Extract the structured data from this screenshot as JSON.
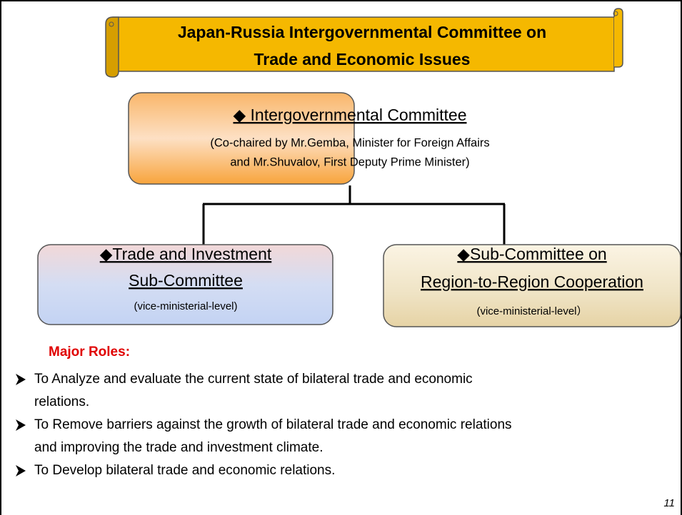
{
  "banner": {
    "title_lines": [
      "Japan-Russia Intergovernmental Committee on",
      "Trade and Economic Issues"
    ]
  },
  "nodes": [
    {
      "heading": [
        "◆ Intergovernmental Committee"
      ],
      "lines": [
        "(Co-chaired by Mr.Gemba, Minister for Foreign Affairs",
        "and Mr.Shuvalov, First Deputy Prime Minister)"
      ]
    },
    {
      "heading": [
        "◆Trade and Investment ",
        "Sub-Committee"
      ],
      "lines": [
        "(vice-ministerial-level)"
      ]
    },
    {
      "heading": [
        "◆Sub-Committee on",
        "Region-to-Region Cooperation"
      ],
      "lines": [
        "(vice-ministerial-level）"
      ]
    }
  ],
  "roles": {
    "heading": "Major Roles:",
    "items": [
      [
        "To Analyze and evaluate the current state of bilateral trade and economic",
        "relations."
      ],
      [
        "To Remove barriers against the growth of bilateral trade and economic relations",
        "and improving the trade and investment climate."
      ],
      [
        "To Develop bilateral trade and economic relations."
      ]
    ]
  },
  "page_number": "11"
}
